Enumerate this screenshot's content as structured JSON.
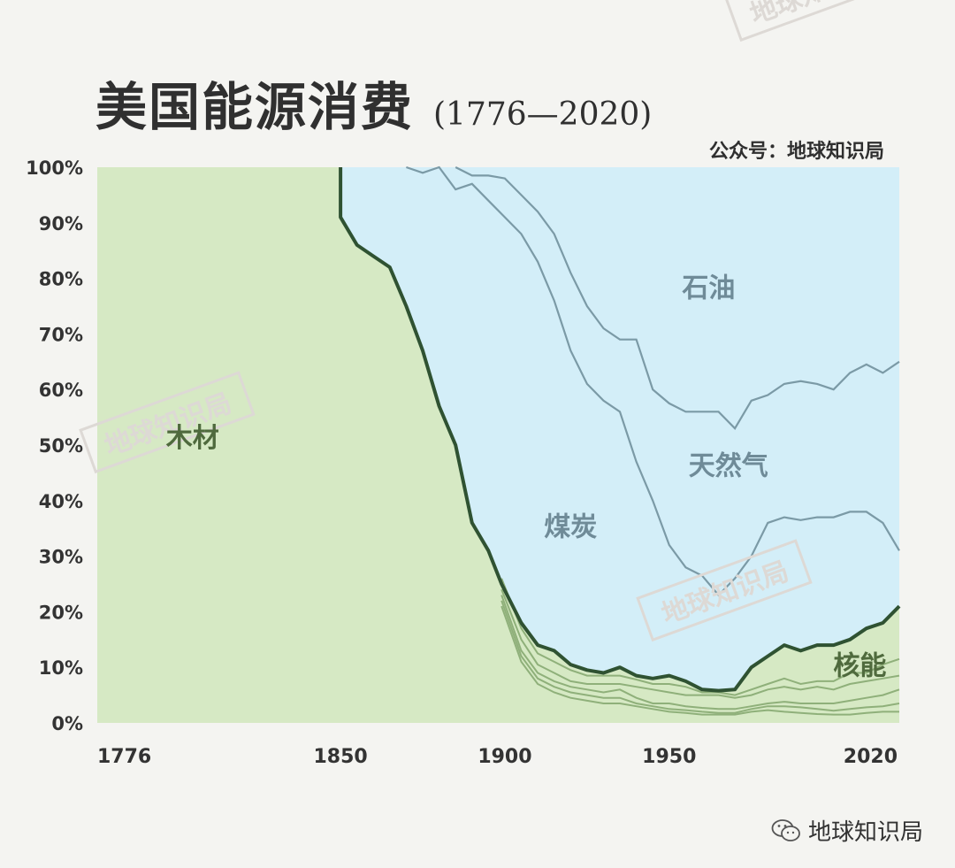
{
  "header": {
    "title": "美国能源消费",
    "years": "(1776—2020)",
    "source": "公众号：地球知识局"
  },
  "footer": {
    "brand": "地球知识局",
    "icon": "wechat-icon"
  },
  "watermarks": [
    "地球知识局",
    "地球知识局",
    "地球知识局"
  ],
  "colors": {
    "wood": "#d6e9c4",
    "fossil": "#d3eef8",
    "boundary": "#2f5232",
    "inner_line": "#7b9aa6",
    "green_line": "#8fb07a",
    "label_blue": "#6f8b98",
    "label_green": "#4f6a3d"
  },
  "chart_data": {
    "type": "area",
    "title": "美国能源消费",
    "subtitle": "(1776—2020)",
    "xlabel": "",
    "ylabel": "",
    "xlim": [
      1776,
      2020
    ],
    "ylim": [
      0,
      100
    ],
    "y_unit": "%",
    "grid": false,
    "x_ticks": [
      "1776",
      "1850",
      "1900",
      "1950",
      "2020"
    ],
    "y_ticks": [
      "0%",
      "10%",
      "20%",
      "30%",
      "40%",
      "50%",
      "60%",
      "70%",
      "80%",
      "90%",
      "100%"
    ],
    "area_labels": [
      {
        "text": "木材",
        "color": "#4f6a3d",
        "x": 1805,
        "y": 51
      },
      {
        "text": "煤炭",
        "color": "#6f8b98",
        "x": 1920,
        "y": 35
      },
      {
        "text": "石油",
        "color": "#6f8b98",
        "x": 1962,
        "y": 78
      },
      {
        "text": "天然气",
        "color": "#6f8b98",
        "x": 1968,
        "y": 46
      },
      {
        "text": "核能",
        "color": "#4f6a3d",
        "x": 2008,
        "y": 10
      }
    ],
    "series": [
      {
        "name": "木材",
        "role": "wood-boundary",
        "x": [
          1776,
          1850,
          1850,
          1851,
          1855,
          1860,
          1865,
          1870,
          1875,
          1880,
          1885,
          1890,
          1895,
          1899,
          1905,
          1910,
          1915,
          1920,
          1925,
          1930,
          1935,
          1940,
          1945,
          1950,
          1955,
          1960,
          1965,
          1970,
          1975,
          1980,
          1985,
          1990,
          1995,
          2000,
          2005,
          2010,
          2015,
          2020
        ],
        "y": [
          100,
          100,
          91,
          90,
          86,
          84,
          82,
          75,
          67,
          57,
          50,
          36,
          31,
          25,
          18,
          14,
          13,
          10.5,
          9.5,
          9,
          10,
          8.5,
          8,
          8.5,
          7.5,
          6,
          5.8,
          6,
          10,
          12,
          14,
          13,
          14,
          14,
          15,
          17,
          18,
          21
        ]
      },
      {
        "name": "煤炭",
        "role": "coal-upper",
        "x": [
          1870,
          1875,
          1880,
          1885,
          1890,
          1895,
          1900,
          1905,
          1910,
          1915,
          1920,
          1925,
          1930,
          1935,
          1940,
          1945,
          1950,
          1955,
          1960,
          1965,
          1970,
          1975,
          1980,
          1985,
          1990,
          1995,
          2000,
          2005,
          2010,
          2015,
          2020
        ],
        "y": [
          100,
          99,
          100,
          96,
          97,
          94,
          91,
          88,
          83,
          76,
          67,
          61,
          58,
          56,
          47,
          40,
          32,
          28,
          26.5,
          23,
          26,
          30,
          36,
          37,
          36.5,
          37,
          37,
          38,
          38,
          36,
          31
        ]
      },
      {
        "name": "天然气",
        "role": "gas-upper",
        "x": [
          1885,
          1890,
          1895,
          1900,
          1905,
          1910,
          1915,
          1920,
          1925,
          1930,
          1935,
          1940,
          1945,
          1950,
          1955,
          1960,
          1965,
          1970,
          1975,
          1980,
          1985,
          1990,
          1995,
          2000,
          2005,
          2010,
          2015,
          2020
        ],
        "y": [
          100,
          98.5,
          98.5,
          98,
          95,
          92,
          88,
          81,
          75,
          71,
          69,
          69,
          60,
          57.5,
          56,
          56,
          56,
          53,
          58,
          59,
          61,
          61.5,
          61,
          60,
          63,
          64.5,
          63,
          65
        ]
      },
      {
        "name": "",
        "role": "inner-green",
        "x": [
          1899,
          1905,
          1910,
          1915,
          1920,
          1925,
          1930,
          1935,
          1940,
          1945,
          1950,
          1955,
          1960,
          1965,
          1970,
          1975,
          1980,
          1985,
          1990,
          1995,
          2000,
          2005,
          2010,
          2015,
          2020
        ],
        "y": [
          26,
          17,
          12.5,
          11,
          9.5,
          8.5,
          8.5,
          8.5,
          7.8,
          7,
          7,
          6.5,
          5.5,
          5.5,
          5,
          6,
          7,
          8,
          7,
          7.5,
          7.5,
          9,
          9,
          10.5,
          11.5
        ]
      },
      {
        "name": "",
        "role": "inner-green",
        "x": [
          1899,
          1905,
          1910,
          1915,
          1920,
          1925,
          1930,
          1935,
          1940,
          1945,
          1950,
          1955,
          1960,
          1965,
          1970,
          1975,
          1980,
          1985,
          1990,
          1995,
          2000,
          2005,
          2010,
          2015,
          2020
        ],
        "y": [
          24,
          15,
          10.5,
          9,
          7.5,
          7,
          7,
          7,
          6.5,
          6,
          5.5,
          5,
          5,
          5,
          4.5,
          5,
          6,
          6.5,
          6,
          6.5,
          6,
          7,
          7.5,
          8,
          8.5
        ]
      },
      {
        "name": "",
        "role": "inner-green",
        "x": [
          1899,
          1905,
          1910,
          1915,
          1920,
          1925,
          1930,
          1935,
          1940,
          1945,
          1950,
          1955,
          1960,
          1965,
          1970,
          1975,
          1980,
          1985,
          1990,
          1995,
          2000,
          2005,
          2010,
          2015,
          2020
        ],
        "y": [
          23,
          13,
          9,
          7.5,
          6.5,
          6,
          5.5,
          6,
          4.5,
          3.5,
          3.5,
          3,
          2.7,
          2.5,
          2.5,
          3,
          3.5,
          3.8,
          3.5,
          3.5,
          3.5,
          4,
          4.5,
          5,
          6
        ]
      },
      {
        "name": "",
        "role": "inner-green",
        "x": [
          1899,
          1905,
          1910,
          1915,
          1920,
          1925,
          1930,
          1935,
          1940,
          1945,
          1950,
          1955,
          1960,
          1965,
          1970,
          1975,
          1980,
          1985,
          1990,
          1995,
          2000,
          2005,
          2010,
          2015,
          2020
        ],
        "y": [
          22,
          12,
          8,
          6.5,
          5.5,
          5,
          4.5,
          4.5,
          3.5,
          3,
          2.5,
          2.3,
          2,
          1.8,
          1.8,
          2.5,
          3,
          3,
          2.8,
          2.5,
          2.2,
          2.5,
          2.8,
          3,
          3.5
        ]
      },
      {
        "name": "",
        "role": "inner-green",
        "x": [
          1899,
          1905,
          1910,
          1915,
          1920,
          1925,
          1930,
          1935,
          1940,
          1945,
          1950,
          1955,
          1960,
          1965,
          1970,
          1975,
          1980,
          1985,
          1990,
          1995,
          2000,
          2005,
          2010,
          2015,
          2020
        ],
        "y": [
          21,
          11,
          7,
          5.5,
          4.5,
          4,
          3.5,
          3.5,
          3,
          2.5,
          2,
          1.8,
          1.5,
          1.5,
          1.5,
          2,
          2.3,
          2,
          1.8,
          1.6,
          1.5,
          1.5,
          1.8,
          2,
          2
        ]
      }
    ]
  }
}
